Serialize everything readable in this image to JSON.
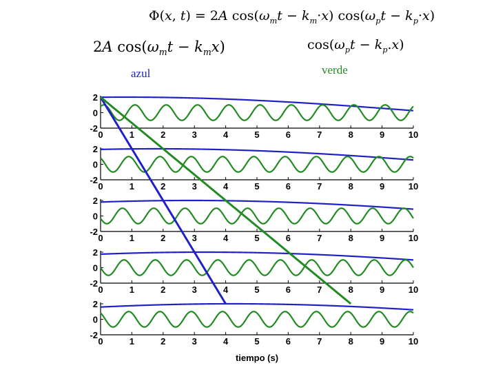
{
  "header": {
    "caption_left": "azul",
    "caption_right": "verde"
  },
  "colors": {
    "blue": "#2020c8",
    "green": "#218a21",
    "axis": "#000000"
  },
  "chart_data": {
    "type": "line",
    "xlabel": "tiempo (s)",
    "xlim": [
      0,
      10
    ],
    "ylim": [
      -2,
      2
    ],
    "xticks": [
      0,
      1,
      2,
      3,
      4,
      5,
      6,
      7,
      8,
      9,
      10
    ],
    "yticks": [
      2,
      0,
      -2
    ],
    "grid": false,
    "panels": [
      {
        "series": [
          {
            "name": "azul",
            "color": "#2020c8",
            "amplitude": 2,
            "period_s": 40,
            "peak_time_s": 0.8
          },
          {
            "name": "verde",
            "color": "#218a21",
            "amplitude": 1,
            "period_s": 1,
            "peak_time_s": 0.1
          }
        ]
      },
      {
        "series": [
          {
            "name": "azul",
            "color": "#2020c8",
            "amplitude": 2,
            "period_s": 40,
            "peak_time_s": 1.8
          },
          {
            "name": "verde",
            "color": "#218a21",
            "amplitude": 1,
            "period_s": 1,
            "peak_time_s": 1.9
          }
        ]
      },
      {
        "series": [
          {
            "name": "azul",
            "color": "#2020c8",
            "amplitude": 2,
            "period_s": 40,
            "peak_time_s": 2.9
          },
          {
            "name": "verde",
            "color": "#218a21",
            "amplitude": 1,
            "period_s": 1,
            "peak_time_s": 3.7
          }
        ]
      },
      {
        "series": [
          {
            "name": "azul",
            "color": "#2020c8",
            "amplitude": 2,
            "period_s": 40,
            "peak_time_s": 3.3
          },
          {
            "name": "verde",
            "color": "#218a21",
            "amplitude": 1,
            "period_s": 1,
            "peak_time_s": 5.75
          }
        ]
      },
      {
        "series": [
          {
            "name": "azul",
            "color": "#2020c8",
            "amplitude": 2,
            "period_s": 40,
            "peak_time_s": 4.2
          },
          {
            "name": "verde",
            "color": "#218a21",
            "amplitude": 1,
            "period_s": 1,
            "peak_time_s": 7.9
          }
        ]
      }
    ],
    "tracking_lines": [
      {
        "name": "azul",
        "color": "#2020c8",
        "points": [
          [
            0,
            2,
            0
          ],
          [
            4,
            2,
            4
          ]
        ]
      },
      {
        "name": "verde",
        "color": "#218a21",
        "points": [
          [
            0,
            2,
            0
          ],
          [
            8,
            2,
            4
          ]
        ]
      }
    ]
  }
}
